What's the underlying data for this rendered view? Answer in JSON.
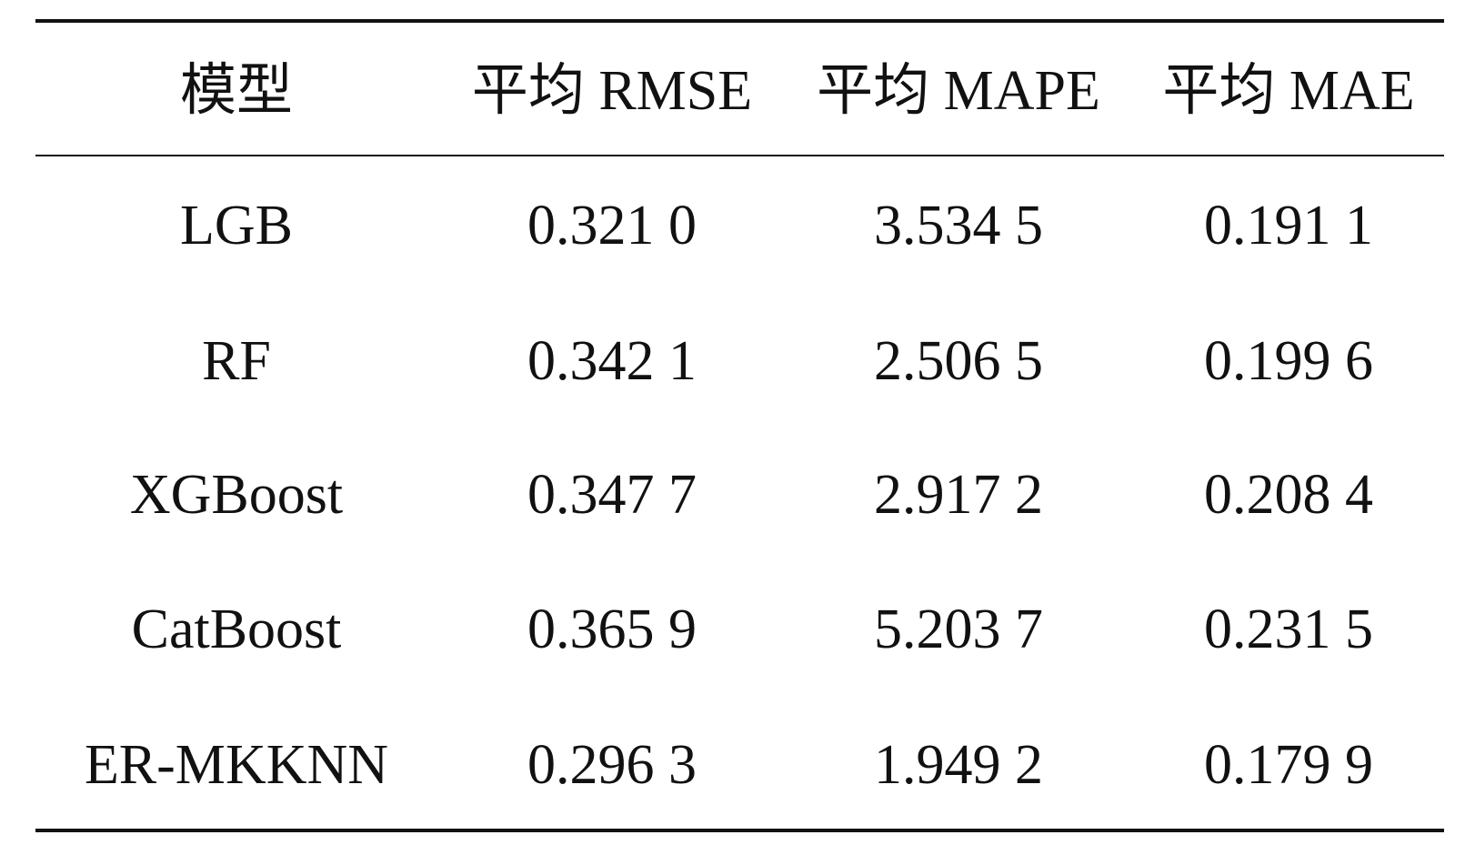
{
  "table": {
    "header": [
      "模型",
      "平均 RMSE",
      "平均 MAPE",
      "平均 MAE"
    ],
    "rows": [
      [
        "LGB",
        "0.321 0",
        "3.534 5",
        "0.191 1"
      ],
      [
        "RF",
        "0.342 1",
        "2.506 5",
        "0.199 6"
      ],
      [
        "XGBoost",
        "0.347 7",
        "2.917 2",
        "0.208 4"
      ],
      [
        "CatBoost",
        "0.365 9",
        "5.203 7",
        "0.231 5"
      ],
      [
        "ER-MKKNN",
        "0.296 3",
        "1.949 2",
        "0.179 9"
      ]
    ]
  }
}
